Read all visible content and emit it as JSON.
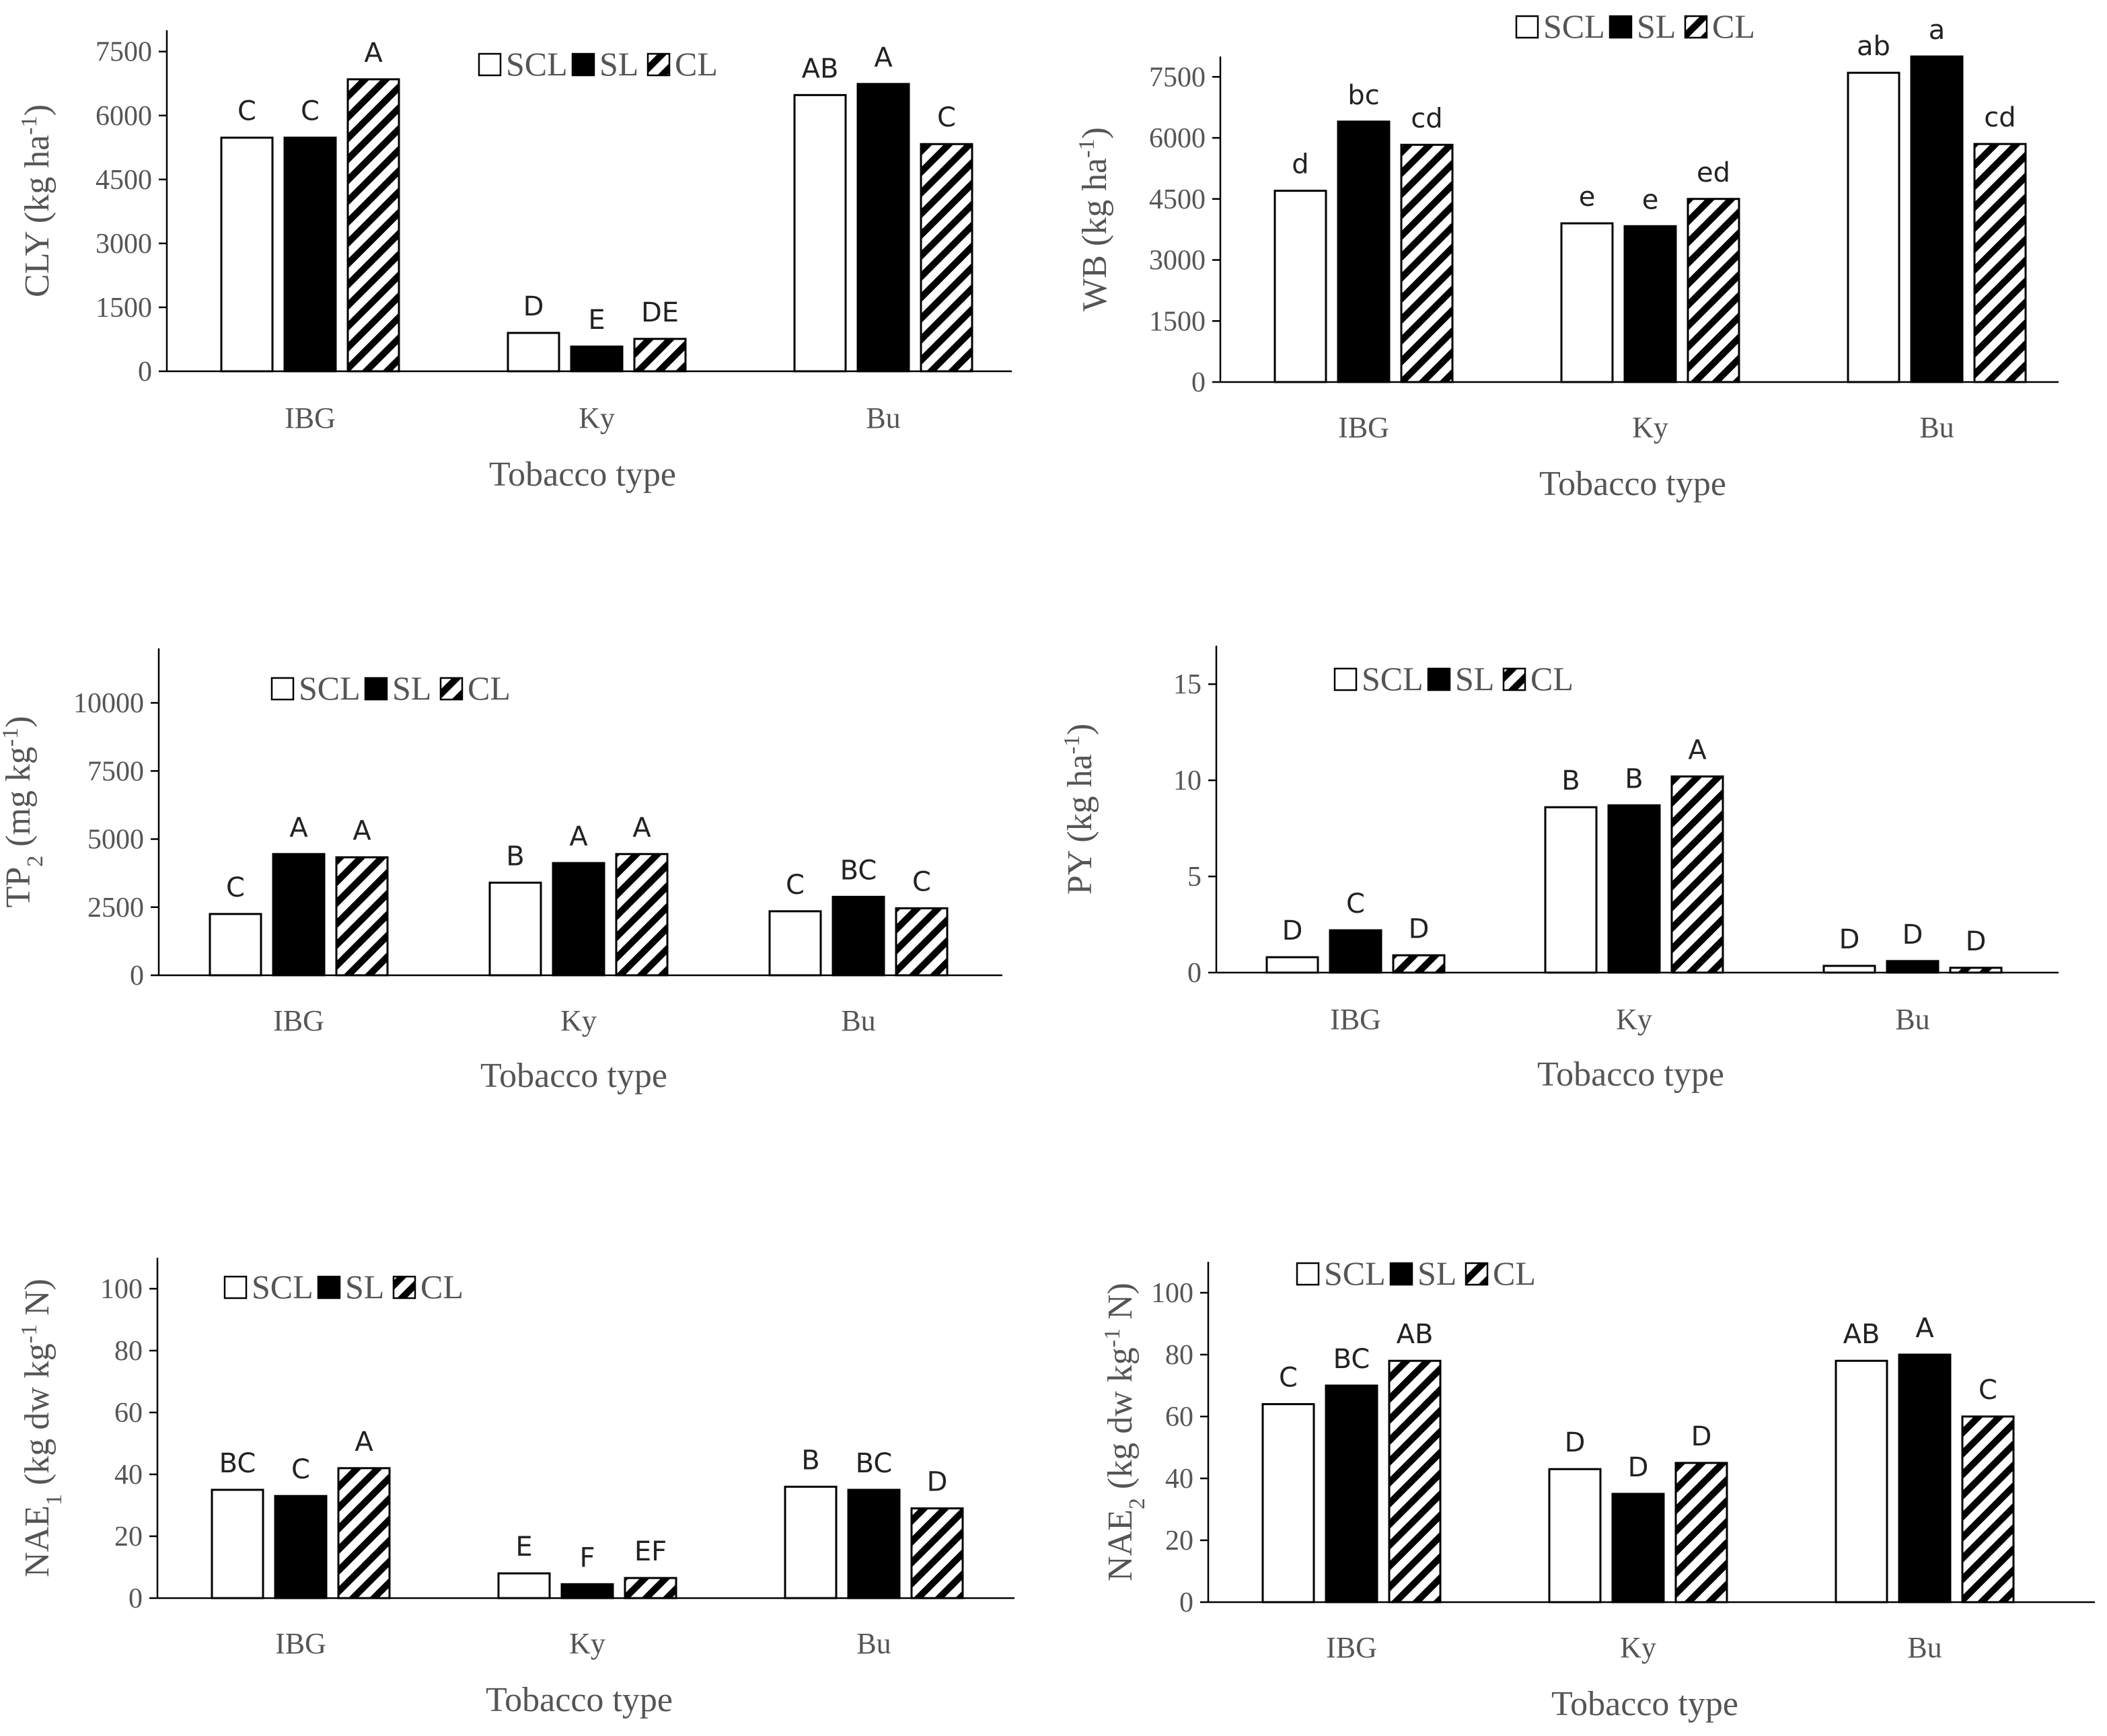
{
  "categories": [
    "IBG",
    "Ky",
    "Bu"
  ],
  "xlabel": "Tobacco type",
  "legend": [
    "SCL",
    "SL",
    "CL"
  ],
  "series_styles": [
    {
      "name": "SCL",
      "fill": "#ffffff"
    },
    {
      "name": "SL",
      "fill": "#000000"
    },
    {
      "name": "CL",
      "fill": "hatch"
    }
  ],
  "chart_data": [
    {
      "type": "bar",
      "ylabel_parts": [
        {
          "t": "CLY (kg ha"
        },
        {
          "t": "-1",
          "sup": true
        },
        {
          "t": ")"
        }
      ],
      "ylim": [
        0,
        8000
      ],
      "yticks": [
        0,
        1500,
        3000,
        4500,
        6000,
        7500
      ],
      "categories": [
        "IBG",
        "Ky",
        "Bu"
      ],
      "xlabel": "Tobacco type",
      "series": [
        {
          "name": "SCL",
          "values": [
            5480,
            900,
            6480
          ],
          "labels": [
            "C",
            "D",
            "AB"
          ]
        },
        {
          "name": "SL",
          "values": [
            5480,
            580,
            6740
          ],
          "labels": [
            "C",
            "E",
            "A"
          ]
        },
        {
          "name": "CL",
          "values": [
            6850,
            760,
            5330
          ],
          "labels": [
            "A",
            "DE",
            "C"
          ]
        }
      ]
    },
    {
      "type": "bar",
      "ylabel_parts": [
        {
          "t": "WB (kg ha"
        },
        {
          "t": "-1",
          "sup": true
        },
        {
          "t": ")"
        }
      ],
      "ylim": [
        0,
        8000
      ],
      "yticks": [
        0,
        1500,
        3000,
        4500,
        6000,
        7500
      ],
      "categories": [
        "IBG",
        "Ky",
        "Bu"
      ],
      "xlabel": "Tobacco type",
      "series": [
        {
          "name": "SCL",
          "values": [
            4700,
            3900,
            7600
          ],
          "labels": [
            "d",
            "e",
            "ab"
          ]
        },
        {
          "name": "SL",
          "values": [
            6400,
            3830,
            8000
          ],
          "labels": [
            "bc",
            "e",
            "a"
          ]
        },
        {
          "name": "CL",
          "values": [
            5830,
            4500,
            5850
          ],
          "labels": [
            "cd",
            "ed",
            "cd"
          ]
        }
      ]
    },
    {
      "type": "bar",
      "ylabel_parts": [
        {
          "t": "TP"
        },
        {
          "t": "2",
          "sub": true
        },
        {
          "t": " (mg kg"
        },
        {
          "t": "-1",
          "sup": true
        },
        {
          "t": ")"
        }
      ],
      "ylim": [
        0,
        12000
      ],
      "yticks": [
        0,
        2500,
        5000,
        7500,
        10000
      ],
      "categories": [
        "IBG",
        "Ky",
        "Bu"
      ],
      "xlabel": "Tobacco type",
      "series": [
        {
          "name": "SCL",
          "values": [
            2250,
            3400,
            2350
          ],
          "labels": [
            "C",
            "B",
            "C"
          ]
        },
        {
          "name": "SL",
          "values": [
            4450,
            4120,
            2880
          ],
          "labels": [
            "A",
            "A",
            "BC"
          ]
        },
        {
          "name": "CL",
          "values": [
            4330,
            4450,
            2460
          ],
          "labels": [
            "A",
            "A",
            "C"
          ]
        }
      ]
    },
    {
      "type": "bar",
      "ylabel_parts": [
        {
          "t": "PY (kg ha"
        },
        {
          "t": "-1",
          "sup": true
        },
        {
          "t": ")"
        }
      ],
      "ylim": [
        0,
        17
      ],
      "yticks": [
        0,
        5,
        10,
        15
      ],
      "categories": [
        "IBG",
        "Ky",
        "Bu"
      ],
      "xlabel": "Tobacco type",
      "series": [
        {
          "name": "SCL",
          "values": [
            0.8,
            8.6,
            0.35
          ],
          "labels": [
            "D",
            "B",
            "D"
          ]
        },
        {
          "name": "SL",
          "values": [
            2.2,
            8.7,
            0.6
          ],
          "labels": [
            "C",
            "B",
            "D"
          ]
        },
        {
          "name": "CL",
          "values": [
            0.9,
            10.2,
            0.25
          ],
          "labels": [
            "D",
            "A",
            "D"
          ]
        }
      ]
    },
    {
      "type": "bar",
      "ylabel_parts": [
        {
          "t": "NAE"
        },
        {
          "t": "1",
          "sub": true
        },
        {
          "t": " (kg dw  kg"
        },
        {
          "t": "-1",
          "sup": true
        },
        {
          "t": " N)"
        }
      ],
      "ylim": [
        0,
        110
      ],
      "yticks": [
        0,
        20,
        40,
        60,
        80,
        100
      ],
      "categories": [
        "IBG",
        "Ky",
        "Bu"
      ],
      "xlabel": "Tobacco type",
      "series": [
        {
          "name": "SCL",
          "values": [
            35,
            8,
            36
          ],
          "labels": [
            "BC",
            "E",
            "B"
          ]
        },
        {
          "name": "SL",
          "values": [
            33,
            4.5,
            35
          ],
          "labels": [
            "C",
            "F",
            "BC"
          ]
        },
        {
          "name": "CL",
          "values": [
            42,
            6.5,
            29
          ],
          "labels": [
            "A",
            "EF",
            "D"
          ]
        }
      ]
    },
    {
      "type": "bar",
      "ylabel_parts": [
        {
          "t": "NAE"
        },
        {
          "t": "2",
          "sub": true
        },
        {
          "t": " (kg dw  kg"
        },
        {
          "t": "-1",
          "sup": true
        },
        {
          "t": " N)"
        }
      ],
      "ylim": [
        0,
        110
      ],
      "yticks": [
        0,
        20,
        40,
        60,
        80,
        100
      ],
      "categories": [
        "IBG",
        "Ky",
        "Bu"
      ],
      "xlabel": "Tobacco type",
      "series": [
        {
          "name": "SCL",
          "values": [
            64,
            43,
            78
          ],
          "labels": [
            "C",
            "D",
            "AB"
          ]
        },
        {
          "name": "SL",
          "values": [
            70,
            35,
            80
          ],
          "labels": [
            "BC",
            "D",
            "A"
          ]
        },
        {
          "name": "CL",
          "values": [
            78,
            45,
            60
          ],
          "labels": [
            "AB",
            "D",
            "C"
          ]
        }
      ]
    }
  ]
}
